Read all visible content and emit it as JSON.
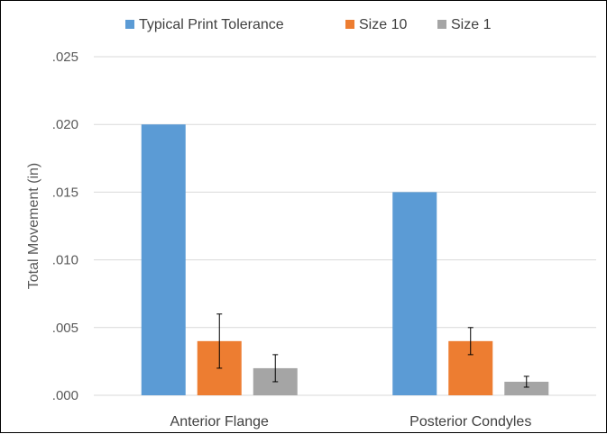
{
  "chart_data": {
    "type": "bar",
    "title": "",
    "xlabel": "",
    "ylabel": "Total Movement (in)",
    "ylim": [
      0,
      0.025
    ],
    "yticks": [
      0,
      0.005,
      0.01,
      0.015,
      0.02,
      0.025
    ],
    "ytick_labels": [
      ".000",
      ".005",
      ".010",
      ".015",
      ".020",
      ".025"
    ],
    "grid": true,
    "legend": "top",
    "categories": [
      "Anterior Flange",
      "Posterior Condyles"
    ],
    "series": [
      {
        "name": "Typical Print Tolerance",
        "color": "#5B9BD5",
        "values": [
          0.02,
          0.015
        ],
        "error": [
          null,
          null
        ]
      },
      {
        "name": "Size 10",
        "color": "#ED7D31",
        "values": [
          0.004,
          0.004
        ],
        "error": [
          0.002,
          0.001
        ]
      },
      {
        "name": "Size 1",
        "color": "#A5A5A5",
        "values": [
          0.002,
          0.001
        ],
        "error": [
          0.001,
          0.0004
        ]
      }
    ]
  }
}
